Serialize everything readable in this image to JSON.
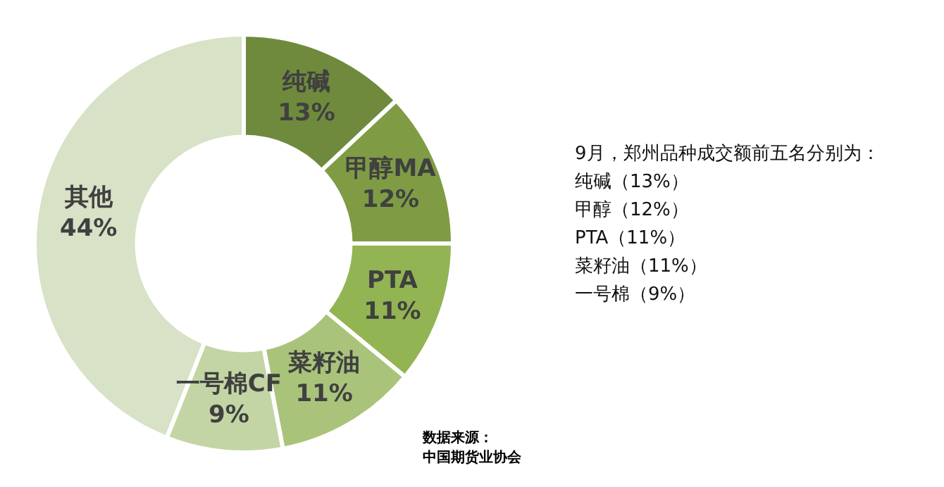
{
  "chart_data": {
    "type": "donut",
    "categories": [
      "纯碱",
      "甲醇MA",
      "PTA",
      "菜籽油",
      "一号棉CF",
      "其他"
    ],
    "values": [
      13,
      12,
      11,
      11,
      9,
      44
    ],
    "value_labels": [
      "13%",
      "12%",
      "11%",
      "11%",
      "9%",
      "44%"
    ],
    "colors": [
      "#6f8a3c",
      "#7f9c45",
      "#93b452",
      "#a9c47a",
      "#c3d5a4",
      "#d7e2c6"
    ],
    "legend": false,
    "annotations": [
      "9月，郑州品种成交额前五名分别为：",
      "纯碱（13%）",
      "甲醇（12%）",
      "PTA（11%）",
      "菜籽油（11%）",
      "一号棉（9%）",
      "数据来源：",
      "中国期货业协会"
    ]
  }
}
